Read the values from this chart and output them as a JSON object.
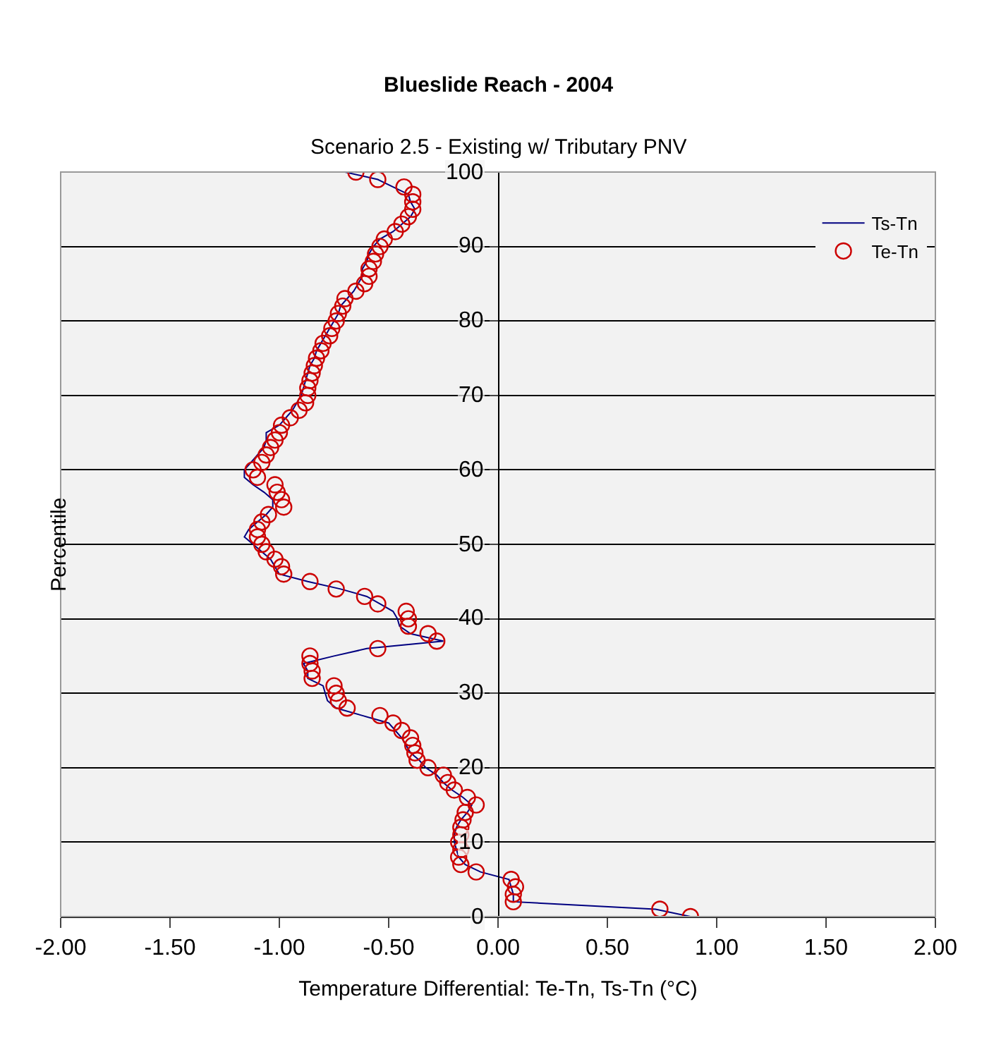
{
  "chart_data": {
    "type": "scatter",
    "title": "Blueslide Reach - 2004",
    "subtitle": "Scenario 2.5 - Existing w/ Tributary PNV",
    "xlabel": "Temperature Differential: Te-Tn, Ts-Tn (°C)",
    "ylabel": "Percentile",
    "xlim": [
      -2,
      2
    ],
    "xticks": [
      {
        "value": -2,
        "label": "-2.00"
      },
      {
        "value": -1.5,
        "label": "-1.50"
      },
      {
        "value": -1,
        "label": "-1.00"
      },
      {
        "value": -0.5,
        "label": "-0.50"
      },
      {
        "value": 0,
        "label": "0.00"
      },
      {
        "value": 0.5,
        "label": "0.50"
      },
      {
        "value": 1,
        "label": "1.00"
      },
      {
        "value": 1.5,
        "label": "1.50"
      },
      {
        "value": 2,
        "label": "2.00"
      }
    ],
    "ylim": [
      0,
      100
    ],
    "yticks": [
      0,
      10,
      20,
      30,
      40,
      50,
      60,
      70,
      80,
      90,
      100
    ],
    "grid": "y",
    "legend": "top right",
    "series": [
      {
        "name": "Ts-Tn",
        "type": "line",
        "color": "#000080",
        "marker": "none",
        "line_style": "solid",
        "x": [
          0.88,
          0.72,
          0.07,
          0.07,
          0.06,
          0.05,
          -0.08,
          -0.15,
          -0.18,
          -0.19,
          -0.2,
          -0.2,
          -0.19,
          -0.17,
          -0.14,
          -0.12,
          -0.16,
          -0.21,
          -0.25,
          -0.28,
          -0.33,
          -0.36,
          -0.4,
          -0.42,
          -0.44,
          -0.47,
          -0.5,
          -0.62,
          -0.74,
          -0.78,
          -0.79,
          -0.8,
          -0.87,
          -0.87,
          -0.89,
          -0.75,
          -0.6,
          -0.25,
          -0.4,
          -0.45,
          -0.46,
          -0.48,
          -0.54,
          -0.6,
          -0.72,
          -0.87,
          -1.0,
          -1.02,
          -1.04,
          -1.08,
          -1.12,
          -1.16,
          -1.14,
          -1.1,
          -1.06,
          -1.03,
          -1.03,
          -1.07,
          -1.12,
          -1.16,
          -1.16,
          -1.13,
          -1.1,
          -1.07,
          -1.06,
          -1.06,
          -1.0,
          -0.97,
          -0.94,
          -0.92,
          -0.9,
          -0.89,
          -0.88,
          -0.87,
          -0.86,
          -0.84,
          -0.83,
          -0.81,
          -0.79,
          -0.77,
          -0.75,
          -0.73,
          -0.72,
          -0.69,
          -0.66,
          -0.64,
          -0.62,
          -0.62,
          -0.6,
          -0.59,
          -0.57,
          -0.54,
          -0.48,
          -0.44,
          -0.4,
          -0.38,
          -0.4,
          -0.41,
          -0.48,
          -0.55,
          -0.7
        ],
        "values": [
          0,
          1,
          2,
          3,
          4,
          5,
          6,
          7,
          8,
          9,
          10,
          11,
          12,
          13,
          14,
          15,
          16,
          17,
          18,
          19,
          20,
          21,
          22,
          23,
          24,
          25,
          26,
          27,
          28,
          29,
          30,
          31,
          32,
          33,
          34,
          35,
          36,
          37,
          38,
          39,
          40,
          41,
          42,
          43,
          44,
          45,
          46,
          47,
          48,
          49,
          50,
          51,
          52,
          53,
          54,
          55,
          56,
          57,
          58,
          59,
          60,
          61,
          62,
          63,
          64,
          65,
          66,
          67,
          68,
          69,
          70,
          71,
          72,
          73,
          74,
          75,
          76,
          77,
          78,
          79,
          80,
          81,
          82,
          83,
          84,
          85,
          86,
          87,
          88,
          89,
          90,
          91,
          92,
          93,
          94,
          95,
          96,
          97,
          98,
          99,
          100
        ]
      },
      {
        "name": "Te-Tn",
        "color": "#cc0000",
        "marker": "circle",
        "x": [
          0.88,
          0.74,
          0.07,
          0.07,
          0.08,
          0.06,
          -0.1,
          -0.17,
          -0.18,
          -0.17,
          -0.18,
          -0.17,
          -0.17,
          -0.16,
          -0.15,
          -0.1,
          -0.14,
          -0.2,
          -0.23,
          -0.25,
          -0.32,
          -0.37,
          -0.38,
          -0.39,
          -0.4,
          -0.44,
          -0.48,
          -0.54,
          -0.69,
          -0.73,
          -0.74,
          -0.75,
          -0.85,
          -0.85,
          -0.86,
          -0.86,
          -0.55,
          -0.28,
          -0.32,
          -0.41,
          -0.41,
          -0.42,
          -0.55,
          -0.61,
          -0.74,
          -0.86,
          -0.98,
          -0.99,
          -1.02,
          -1.06,
          -1.08,
          -1.1,
          -1.1,
          -1.08,
          -1.05,
          -0.98,
          -0.99,
          -1.01,
          -1.02,
          -1.1,
          -1.12,
          -1.08,
          -1.06,
          -1.04,
          -1.02,
          -1.0,
          -0.99,
          -0.95,
          -0.91,
          -0.88,
          -0.87,
          -0.87,
          -0.86,
          -0.85,
          -0.84,
          -0.83,
          -0.81,
          -0.8,
          -0.77,
          -0.76,
          -0.74,
          -0.73,
          -0.71,
          -0.7,
          -0.65,
          -0.61,
          -0.59,
          -0.59,
          -0.57,
          -0.56,
          -0.54,
          -0.52,
          -0.47,
          -0.44,
          -0.41,
          -0.39,
          -0.39,
          -0.39,
          -0.43,
          -0.55,
          -0.65
        ],
        "values": [
          0,
          1,
          2,
          3,
          4,
          5,
          6,
          7,
          8,
          9,
          10,
          11,
          12,
          13,
          14,
          15,
          16,
          17,
          18,
          19,
          20,
          21,
          22,
          23,
          24,
          25,
          26,
          27,
          28,
          29,
          30,
          31,
          32,
          33,
          34,
          35,
          36,
          37,
          38,
          39,
          40,
          41,
          42,
          43,
          44,
          45,
          46,
          47,
          48,
          49,
          50,
          51,
          52,
          53,
          54,
          55,
          56,
          57,
          58,
          59,
          60,
          61,
          62,
          63,
          64,
          65,
          66,
          67,
          68,
          69,
          70,
          71,
          72,
          73,
          74,
          75,
          76,
          77,
          78,
          79,
          80,
          81,
          82,
          83,
          84,
          85,
          86,
          87,
          88,
          89,
          90,
          91,
          92,
          93,
          94,
          95,
          96,
          97,
          98,
          99,
          100
        ]
      }
    ]
  }
}
